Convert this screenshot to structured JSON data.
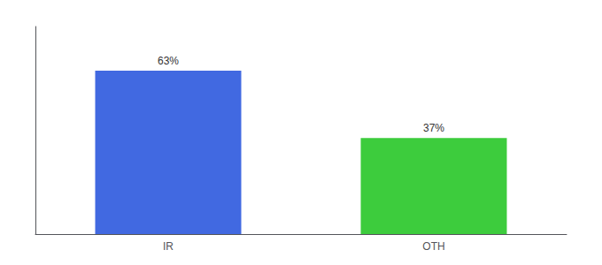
{
  "chart_data": {
    "type": "bar",
    "categories": [
      "IR",
      "OTH"
    ],
    "values": [
      63,
      37
    ],
    "value_labels": [
      "63%",
      "37%"
    ],
    "colors": [
      "#4169e1",
      "#3dcc3d"
    ],
    "ylim": [
      0,
      80
    ],
    "data_labels": true,
    "tick_labels": "x",
    "grid": false
  }
}
